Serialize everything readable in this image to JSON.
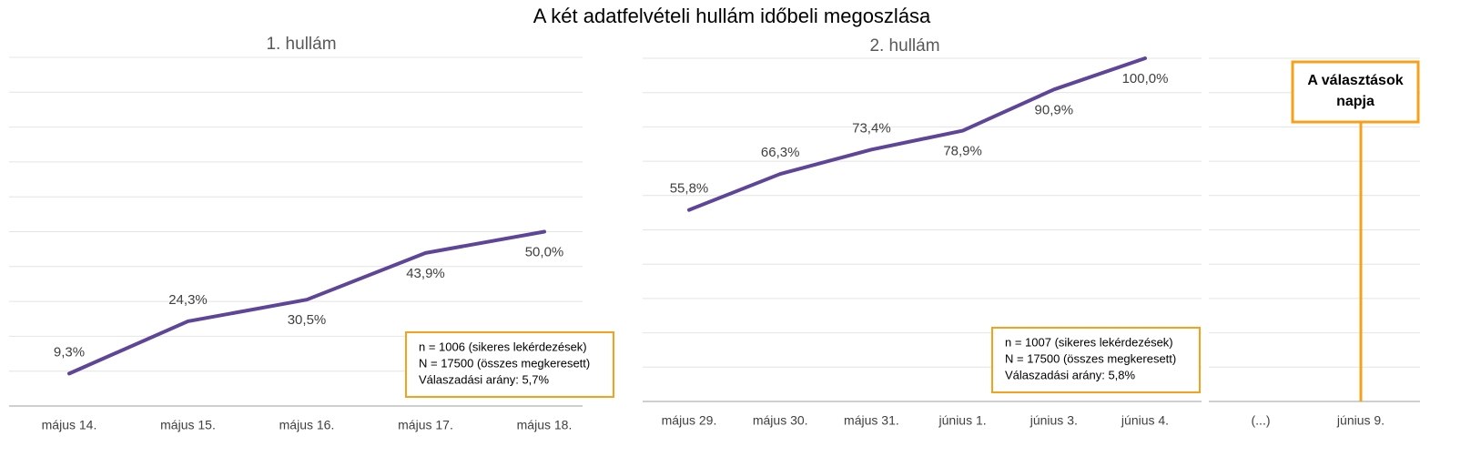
{
  "title": "A két adatfelvételi hullám időbeli megoszlása",
  "chart_data": [
    {
      "type": "line",
      "title": "1. hullám",
      "categories": [
        "május 14.",
        "május 15.",
        "május 16.",
        "május 17.",
        "május 18."
      ],
      "values": [
        9.3,
        24.3,
        30.5,
        43.9,
        50.0
      ],
      "value_labels": [
        "9,3%",
        "24,3%",
        "30,5%",
        "43,9%",
        "50,0%"
      ],
      "color": "#5f4597",
      "ylim": [
        0,
        100
      ],
      "yticks": [
        0,
        10,
        20,
        30,
        40,
        50,
        60,
        70,
        80,
        90,
        100
      ],
      "grid": true,
      "notes": [
        "n = 1006 (sikeres lekérdezések)",
        "N = 17500 (összes megkeresett)",
        "Válaszadási arány: 5,7%"
      ]
    },
    {
      "type": "line",
      "title": "2. hullám",
      "categories": [
        "május 29.",
        "május 30.",
        "május 31.",
        "június 1.",
        "június 3.",
        "június 4."
      ],
      "values": [
        55.8,
        66.3,
        73.4,
        78.9,
        90.9,
        100.0
      ],
      "value_labels": [
        "55,8%",
        "66,3%",
        "73,4%",
        "78,9%",
        "90,9%",
        "100,0%"
      ],
      "color": "#5f4597",
      "ylim": [
        0,
        100
      ],
      "yticks": [
        0,
        10,
        20,
        30,
        40,
        50,
        60,
        70,
        80,
        90,
        100
      ],
      "grid": true,
      "notes": [
        "n = 1007 (sikeres lekérdezések)",
        "N = 17500 (összes megkeresett)",
        "Válaszadási arány: 5,8%"
      ]
    },
    {
      "type": "marker",
      "categories": [
        "(...)",
        "június 9."
      ],
      "ylim": [
        0,
        100
      ],
      "yticks": [
        0,
        10,
        20,
        30,
        40,
        50,
        60,
        70,
        80,
        90,
        100
      ],
      "grid": true,
      "annotation": [
        "A választások",
        "napja"
      ],
      "marker_category": 1,
      "color": "#f5a11c"
    }
  ]
}
